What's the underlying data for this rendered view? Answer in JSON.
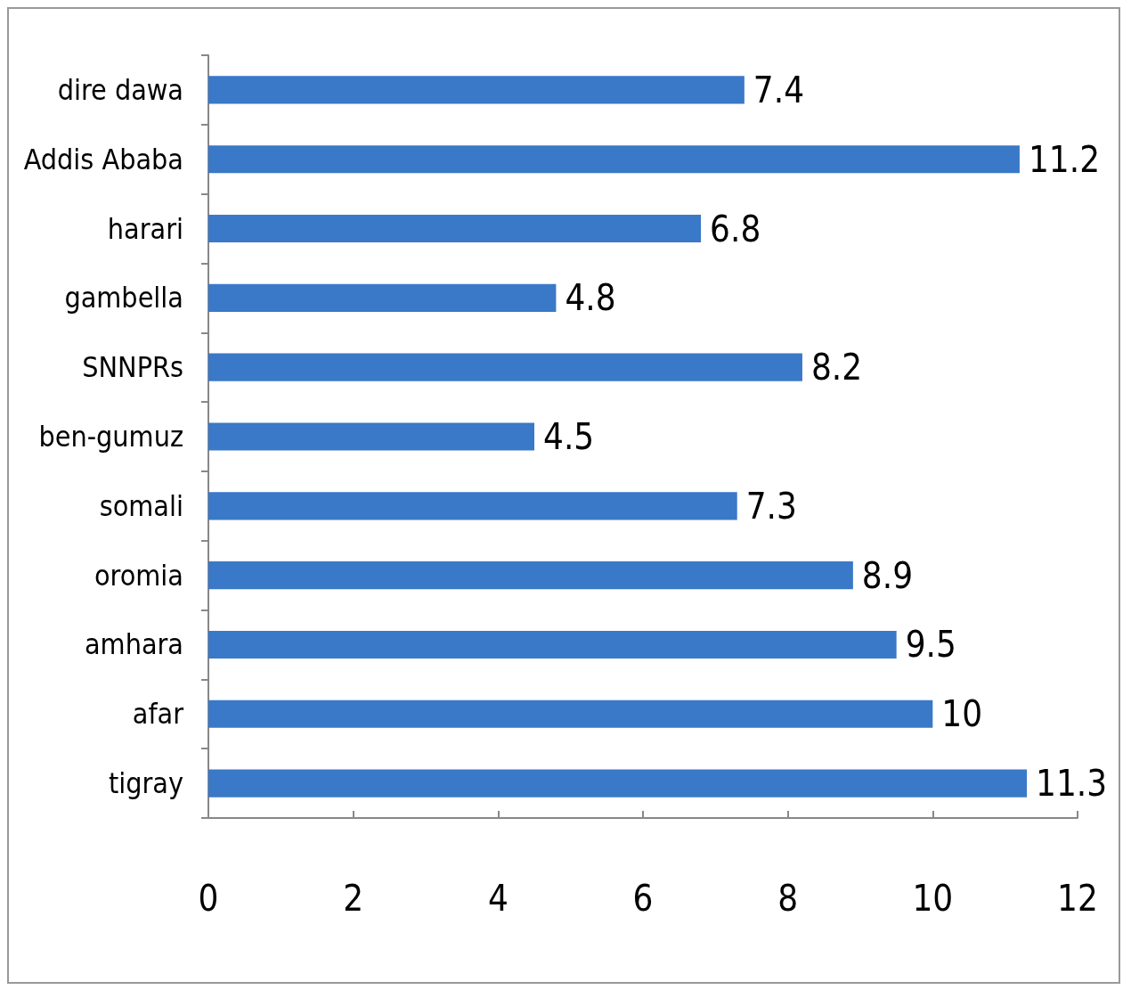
{
  "chart_data": {
    "type": "bar",
    "orientation": "horizontal",
    "categories": [
      "dire dawa",
      "Addis Ababa",
      "harari",
      "gambella",
      "SNNPRs",
      "ben-gumuz",
      "somali",
      "oromia",
      "amhara",
      "afar",
      "tigray"
    ],
    "values": [
      7.4,
      11.2,
      6.8,
      4.8,
      8.2,
      4.5,
      7.3,
      8.9,
      9.5,
      10,
      11.3
    ],
    "color": "#3a78c8",
    "xlim": [
      0,
      12
    ],
    "xticks": [
      0,
      2,
      4,
      6,
      8,
      10,
      12
    ],
    "grid": false,
    "data_labels": true
  }
}
